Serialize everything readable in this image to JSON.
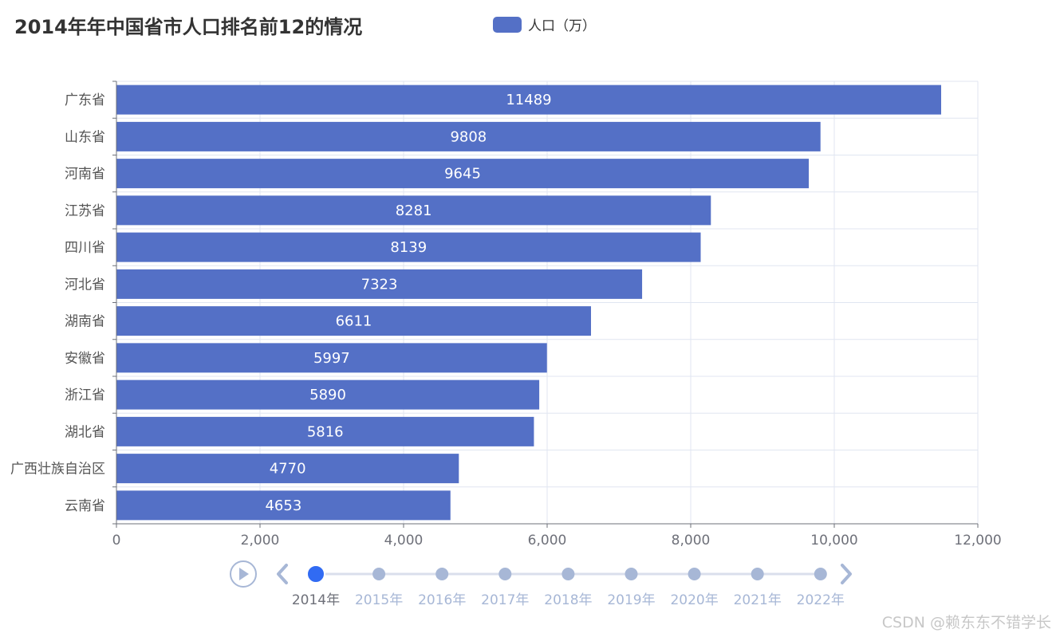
{
  "title": "2014年年中国省市人口排名前12的情况",
  "legend": {
    "label": "人口（万）",
    "color": "#5470c6"
  },
  "chart_data": {
    "type": "bar",
    "orientation": "horizontal",
    "title": "2014年年中国省市人口排名前12的情况",
    "categories": [
      "广东省",
      "山东省",
      "河南省",
      "江苏省",
      "四川省",
      "河北省",
      "湖南省",
      "安徽省",
      "浙江省",
      "湖北省",
      "广西壮族自治区",
      "云南省"
    ],
    "series": [
      {
        "name": "人口（万）",
        "values": [
          11489,
          9808,
          9645,
          8281,
          8139,
          7323,
          6611,
          5997,
          5890,
          5816,
          4770,
          4653
        ],
        "color": "#5470c6"
      }
    ],
    "xlim": [
      0,
      12000
    ],
    "x_ticks": [
      0,
      2000,
      4000,
      6000,
      8000,
      10000,
      12000
    ],
    "x_tick_labels": [
      "0",
      "2,000",
      "4,000",
      "6,000",
      "8,000",
      "10,000",
      "12,000"
    ],
    "grid": true,
    "data_labels": true,
    "legend_position": "top-center"
  },
  "timeline": {
    "years": [
      "2014年",
      "2015年",
      "2016年",
      "2017年",
      "2018年",
      "2019年",
      "2020年",
      "2021年",
      "2022年"
    ],
    "active_index": 0
  },
  "watermark": "CSDN @赖东东不错学长"
}
